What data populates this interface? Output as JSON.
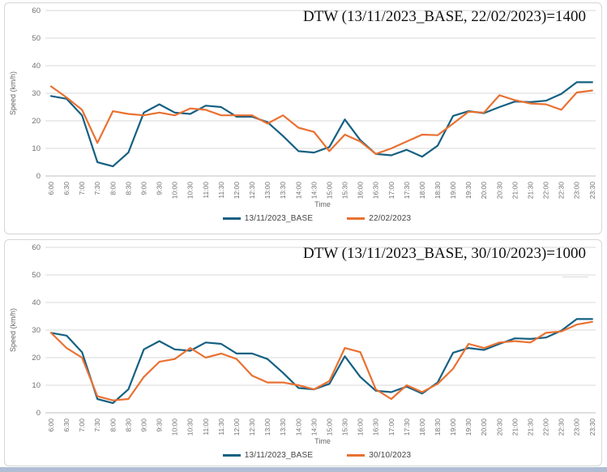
{
  "colors": {
    "series_blue": "#156082",
    "series_orange": "#E97132",
    "gridline": "#d9d9d9",
    "axis_line": "#bfbfbf",
    "tick_text": "#707070",
    "window_strip": "#b0bdd4"
  },
  "x_labels": [
    "6:00",
    "6:30",
    "7:00",
    "7:30",
    "8:00",
    "8:30",
    "9:00",
    "9:30",
    "10:00",
    "10:30",
    "11:00",
    "11:30",
    "12:00",
    "12:30",
    "13:00",
    "13:30",
    "14:00",
    "14:30",
    "15:00",
    "15:30",
    "16:00",
    "16:30",
    "17:00",
    "17:30",
    "18:00",
    "18:30",
    "19:00",
    "19:30",
    "20:00",
    "20:30",
    "21:00",
    "21:30",
    "22:00",
    "22:30",
    "23:00",
    "23:30"
  ],
  "chart_data": [
    {
      "type": "line",
      "title": "DTW (13/11/2023_BASE, 22/02/2023)=1400",
      "xlabel": "Time",
      "ylabel": "Speed (km/h)",
      "ylim": [
        0,
        60
      ],
      "yticks": [
        0,
        10,
        20,
        30,
        40,
        50,
        60
      ],
      "grid": true,
      "legend_position": "bottom",
      "categories": [
        "6:00",
        "6:30",
        "7:00",
        "7:30",
        "8:00",
        "8:30",
        "9:00",
        "9:30",
        "10:00",
        "10:30",
        "11:00",
        "11:30",
        "12:00",
        "12:30",
        "13:00",
        "13:30",
        "14:00",
        "14:30",
        "15:00",
        "15:30",
        "16:00",
        "16:30",
        "17:00",
        "17:30",
        "18:00",
        "18:30",
        "19:00",
        "19:30",
        "20:00",
        "20:30",
        "21:00",
        "21:30",
        "22:00",
        "22:30",
        "23:00",
        "23:30"
      ],
      "series": [
        {
          "name": "13/11/2023_BASE",
          "color": "#156082",
          "values": [
            29,
            28,
            22,
            5,
            3.5,
            8.5,
            23,
            26,
            23,
            22.5,
            25.5,
            25,
            21.5,
            21.5,
            19.5,
            14.5,
            9,
            8.5,
            10.5,
            20.5,
            13,
            8,
            7.5,
            9.5,
            7,
            11,
            21.8,
            23.5,
            22.8,
            25,
            27,
            26.8,
            27.3,
            29.8,
            34,
            34
          ]
        },
        {
          "name": "22/02/2023",
          "color": "#E97132",
          "values": [
            32.5,
            28.5,
            24,
            12,
            23.5,
            22.5,
            22,
            23,
            22,
            24.5,
            24,
            22,
            22,
            22,
            19,
            22,
            17.5,
            16,
            9,
            15,
            12.5,
            8,
            10,
            12.5,
            15,
            14.8,
            19,
            23.3,
            23,
            29.3,
            27.5,
            26.3,
            26,
            24,
            30.3,
            31
          ]
        }
      ]
    },
    {
      "type": "line",
      "title": "DTW (13/11/2023_BASE, 30/10/2023)=1000",
      "xlabel": "Time",
      "ylabel": "Speed (km/h)",
      "ylim": [
        0,
        60
      ],
      "yticks": [
        0,
        10,
        20,
        30,
        40,
        50,
        60
      ],
      "grid": true,
      "legend_position": "bottom",
      "categories": [
        "6:00",
        "6:30",
        "7:00",
        "7:30",
        "8:00",
        "8:30",
        "9:00",
        "9:30",
        "10:00",
        "10:30",
        "11:00",
        "11:30",
        "12:00",
        "12:30",
        "13:00",
        "13:30",
        "14:00",
        "14:30",
        "15:00",
        "15:30",
        "16:00",
        "16:30",
        "17:00",
        "17:30",
        "18:00",
        "18:30",
        "19:00",
        "19:30",
        "20:00",
        "20:30",
        "21:00",
        "21:30",
        "22:00",
        "22:30",
        "23:00",
        "23:30"
      ],
      "series": [
        {
          "name": "13/11/2023_BASE",
          "color": "#156082",
          "values": [
            29,
            28,
            22,
            5,
            3.5,
            8.5,
            23,
            26,
            23,
            22.5,
            25.5,
            25,
            21.5,
            21.5,
            19.5,
            14.5,
            9,
            8.5,
            10.5,
            20.5,
            13,
            8,
            7.5,
            9.5,
            7,
            11,
            21.8,
            23.5,
            22.8,
            25,
            27,
            26.8,
            27.3,
            29.8,
            34,
            34
          ]
        },
        {
          "name": "30/10/2023",
          "color": "#E97132",
          "values": [
            29,
            23.5,
            20,
            6,
            4.5,
            5,
            13,
            18.5,
            19.5,
            23.5,
            20,
            21.5,
            19.5,
            13.5,
            11,
            11,
            10,
            8.5,
            11.5,
            23.5,
            22,
            8.5,
            5,
            10,
            7.5,
            10.5,
            16,
            25,
            23.5,
            25.5,
            26,
            25.5,
            29,
            29.5,
            32,
            33
          ]
        }
      ]
    }
  ]
}
